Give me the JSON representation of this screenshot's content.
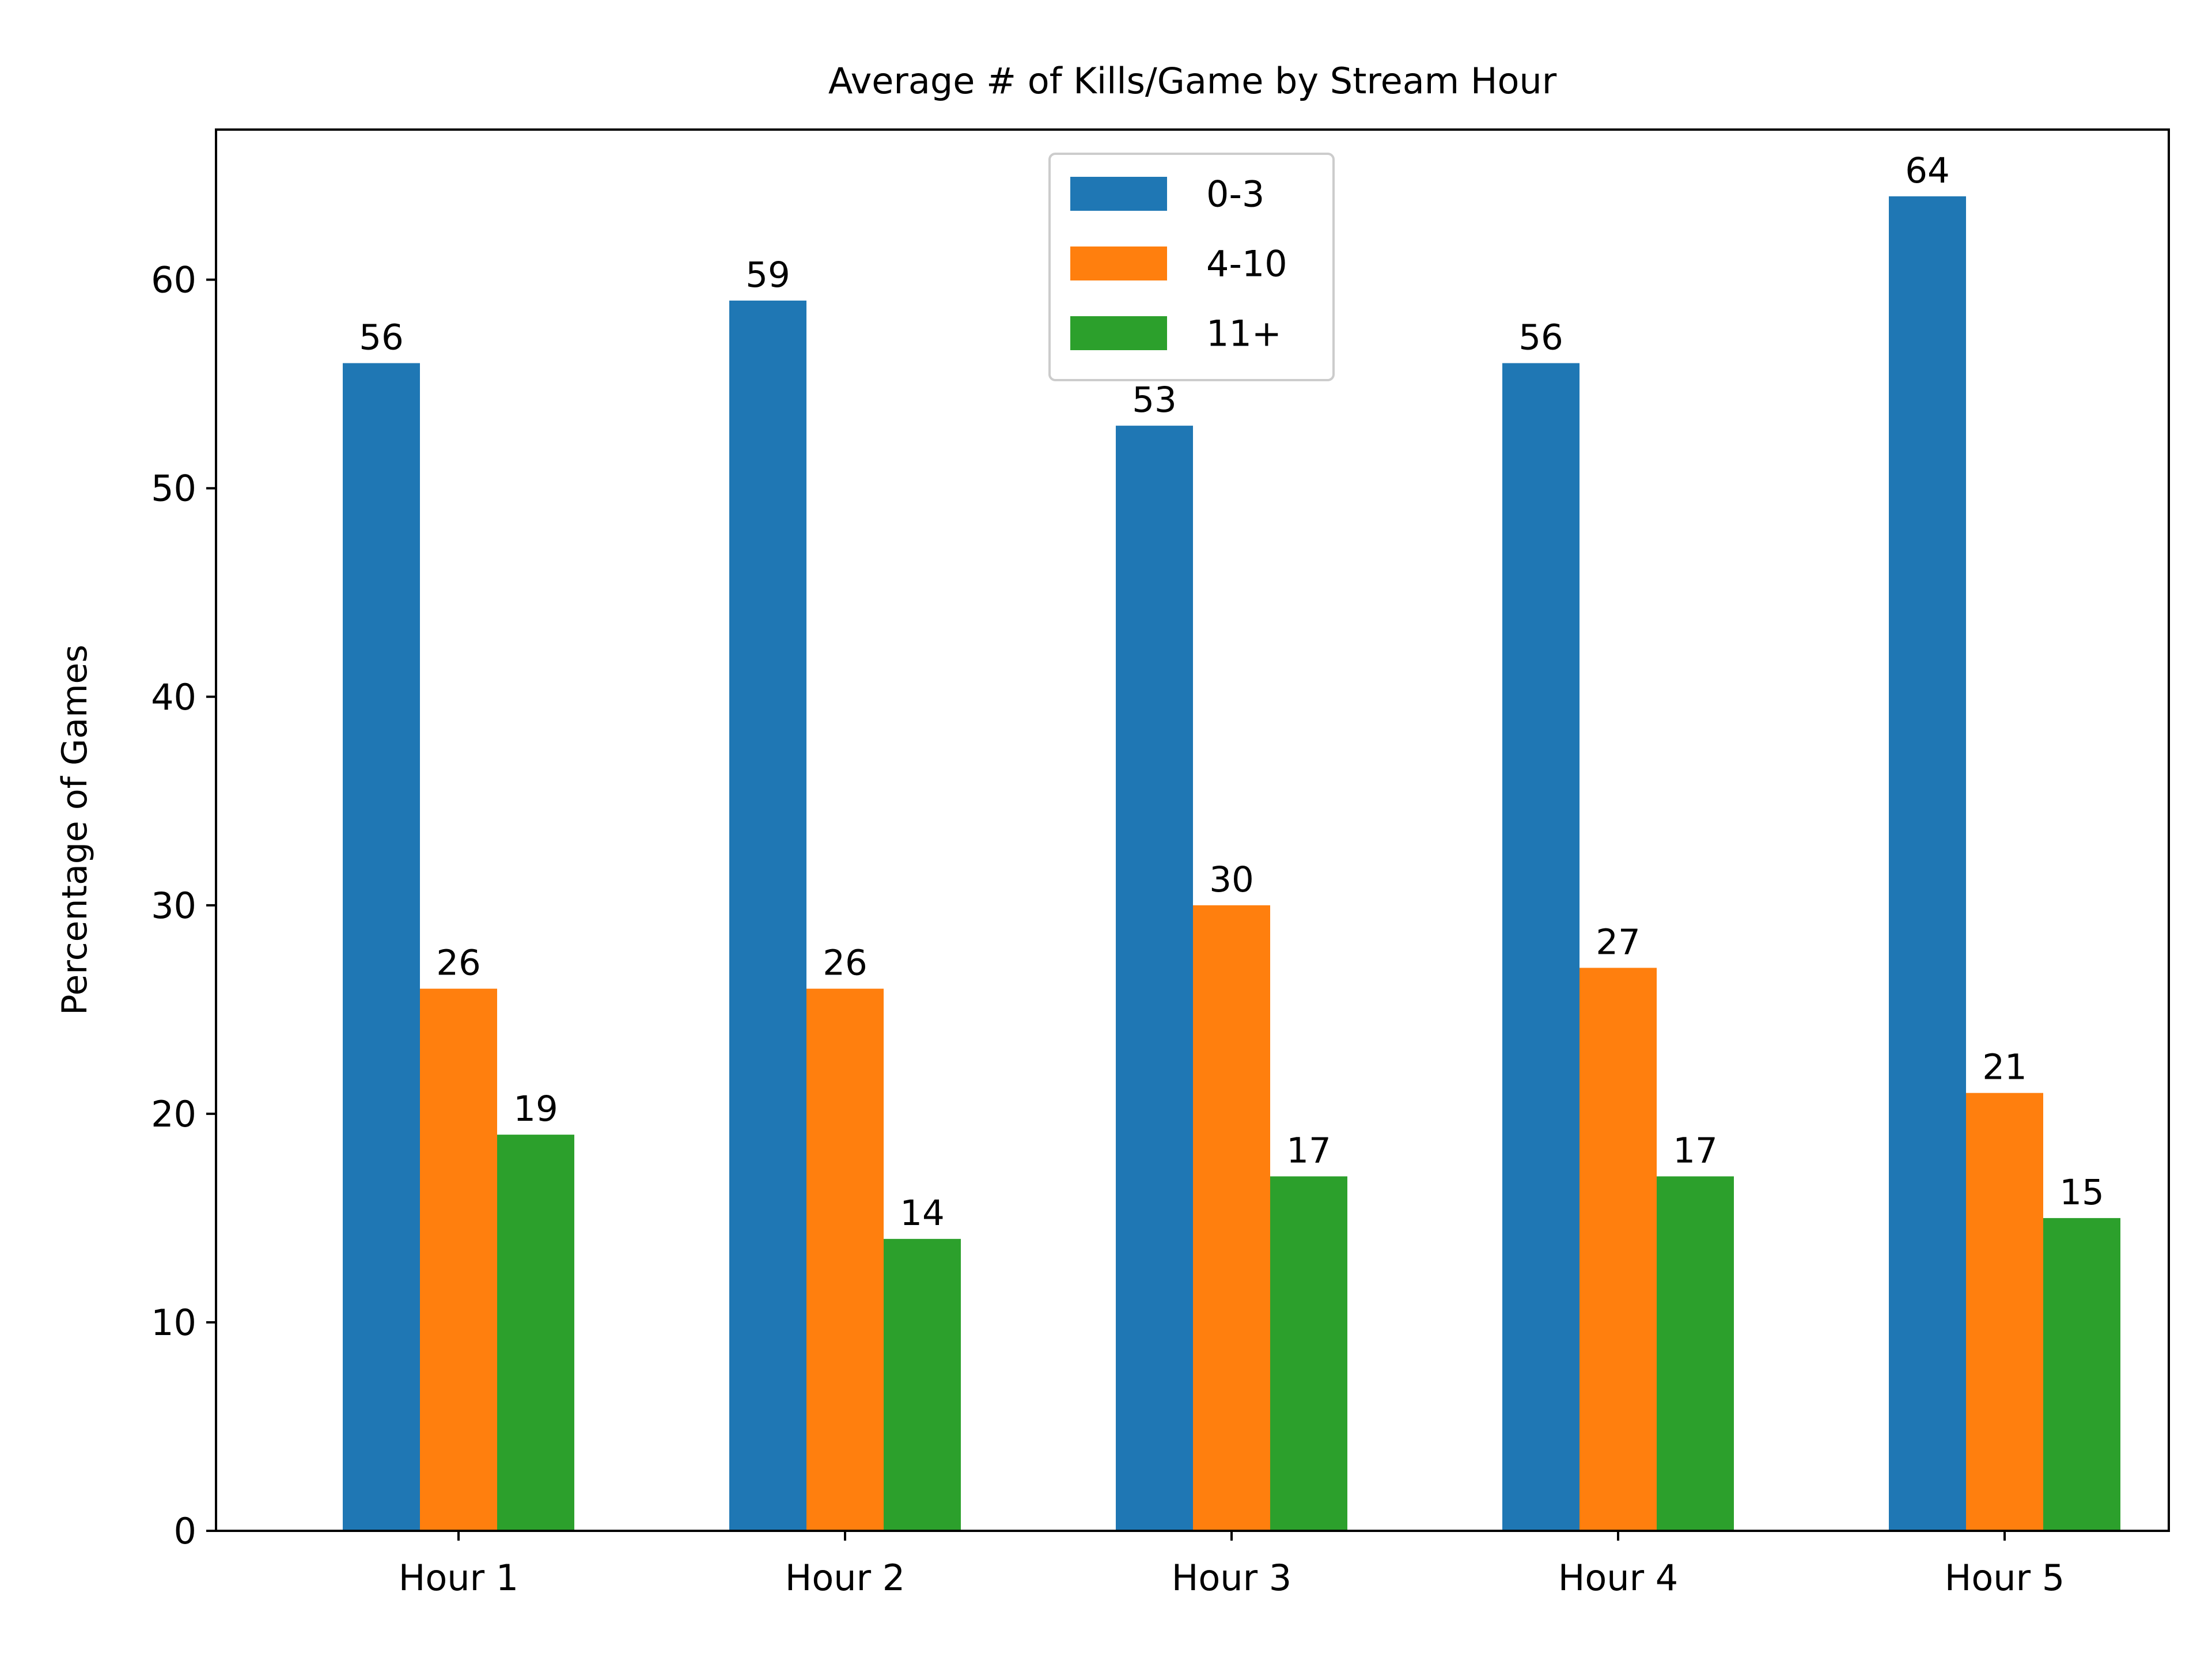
{
  "chart_data": {
    "type": "bar",
    "title": "Average # of Kills/Game by Stream Hour",
    "xlabel": "",
    "ylabel": "Percentage of Games",
    "categories": [
      "Hour 1",
      "Hour 2",
      "Hour 3",
      "Hour 4",
      "Hour 5"
    ],
    "series": [
      {
        "name": "0-3",
        "color": "#1f77b4",
        "values": [
          56,
          59,
          53,
          56,
          64
        ]
      },
      {
        "name": "4-10",
        "color": "#ff7f0e",
        "values": [
          26,
          26,
          30,
          27,
          21
        ]
      },
      {
        "name": "11+",
        "color": "#2ca02c",
        "values": [
          19,
          14,
          17,
          17,
          15
        ]
      }
    ],
    "ylim": [
      0,
      67.2
    ],
    "yticks": [
      0,
      10,
      20,
      30,
      40,
      50,
      60
    ],
    "ytick_labels": [
      "0",
      "10",
      "20",
      "30",
      "40",
      "50",
      "60"
    ],
    "legend_position": "upper center",
    "grid": false,
    "data_labels": true
  }
}
